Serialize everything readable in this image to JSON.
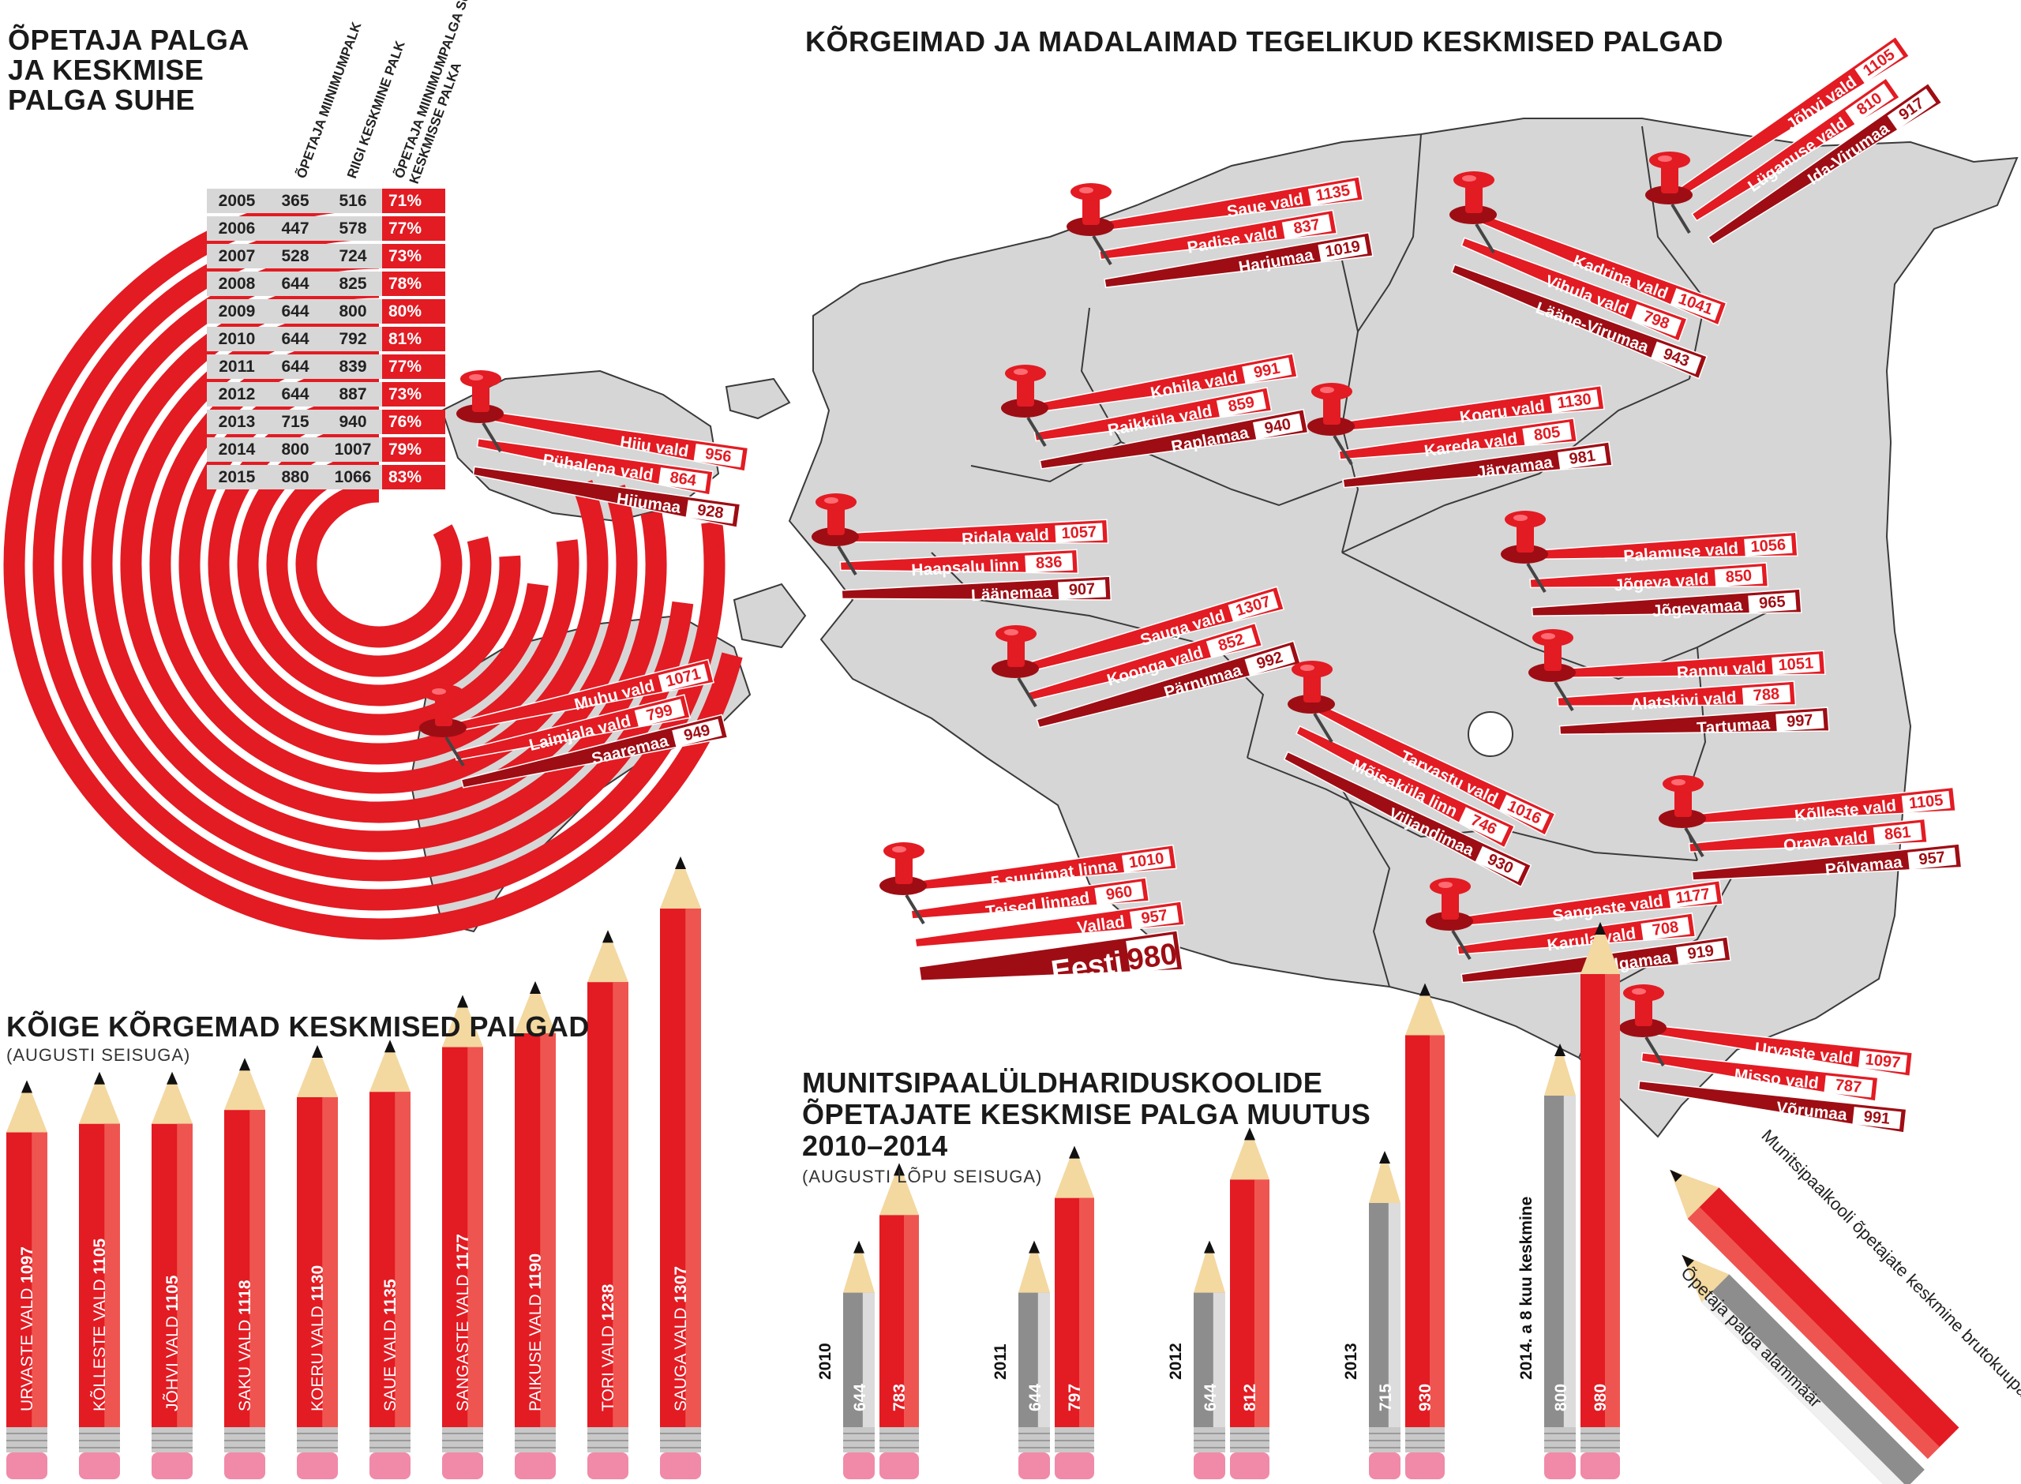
{
  "titles": {
    "ratio": [
      "ÕPETAJA PALGA",
      "JA KESKMISE",
      "PALGA SUHE"
    ],
    "map": "KÕRGEIMAD JA MADALAIMAD TEGELIKUD KESKMISED PALGAD",
    "top10": "KÕIGE KÕRGEMAD KESKMISED PALGAD",
    "top10_sub": "(AUGUSTI SEISUGA)",
    "change": [
      "MUNITSIPAALÜLDHARIDUSKOOLIDE",
      "ÕPETAJATE KESKMISE PALGA MUUTUS",
      "2010–2014"
    ],
    "change_sub": "(AUGUSTI LÕPU SEISUGA)"
  },
  "colors": {
    "red": "#e31b23",
    "dark_red": "#9e0d14",
    "gray": "#d7d7d7",
    "map_gray": "#d6d6d6"
  },
  "chart_data": [
    {
      "type": "table",
      "columns": [
        "ÕPETAJA MIINIMUMPALK",
        "RIIGI KESKMINE PALK",
        "ÕPETAJA MIINIMUMPALGA SUHE RIIGI KESKMISSE PALKA"
      ],
      "rows": [
        {
          "year": "2005",
          "min": "365",
          "avg": "516",
          "pct": "71%",
          "ratio": 0.71
        },
        {
          "year": "2006",
          "min": "447",
          "avg": "578",
          "pct": "77%",
          "ratio": 0.77
        },
        {
          "year": "2007",
          "min": "528",
          "avg": "724",
          "pct": "73%",
          "ratio": 0.73
        },
        {
          "year": "2008",
          "min": "644",
          "avg": "825",
          "pct": "78%",
          "ratio": 0.78
        },
        {
          "year": "2009",
          "min": "644",
          "avg": "800",
          "pct": "80%",
          "ratio": 0.8
        },
        {
          "year": "2010",
          "min": "644",
          "avg": "792",
          "pct": "81%",
          "ratio": 0.81
        },
        {
          "year": "2011",
          "min": "644",
          "avg": "839",
          "pct": "77%",
          "ratio": 0.77
        },
        {
          "year": "2012",
          "min": "644",
          "avg": "887",
          "pct": "73%",
          "ratio": 0.73
        },
        {
          "year": "2013",
          "min": "715",
          "avg": "940",
          "pct": "76%",
          "ratio": 0.76
        },
        {
          "year": "2014",
          "min": "800",
          "avg": "1007",
          "pct": "79%",
          "ratio": 0.79
        },
        {
          "year": "2015",
          "min": "880",
          "avg": "1066",
          "pct": "83%",
          "ratio": 0.83
        }
      ]
    },
    {
      "type": "table",
      "groups": [
        {
          "labels": [
            [
              "Saue vald",
              "1135"
            ],
            [
              "Padise vald",
              "837"
            ],
            [
              "Harjumaa",
              "1019"
            ]
          ]
        },
        {
          "labels": [
            [
              "Jõhvi vald",
              "1105"
            ],
            [
              "Lüganuse vald",
              "810"
            ],
            [
              "Ida-Virumaa",
              "917"
            ]
          ]
        },
        {
          "labels": [
            [
              "Kadrina vald",
              "1041"
            ],
            [
              "Vihula vald",
              "798"
            ],
            [
              "Lääne-Virumaa",
              "943"
            ]
          ]
        },
        {
          "labels": [
            [
              "Hiiu vald",
              "956"
            ],
            [
              "Pühalepa vald",
              "864"
            ],
            [
              "Hiiumaa",
              "928"
            ]
          ]
        },
        {
          "labels": [
            [
              "Kohila vald",
              "991"
            ],
            [
              "Raikküla vald",
              "859"
            ],
            [
              "Raplamaa",
              "940"
            ]
          ]
        },
        {
          "labels": [
            [
              "Koeru vald",
              "1130"
            ],
            [
              "Kareda vald",
              "805"
            ],
            [
              "Järvamaa",
              "981"
            ]
          ]
        },
        {
          "labels": [
            [
              "Ridala vald",
              "1057"
            ],
            [
              "Haapsalu linn",
              "836"
            ],
            [
              "Läänemaa",
              "907"
            ]
          ]
        },
        {
          "labels": [
            [
              "Palamuse vald",
              "1056"
            ],
            [
              "Jõgeva vald",
              "850"
            ],
            [
              "Jõgevamaa",
              "965"
            ]
          ]
        },
        {
          "labels": [
            [
              "Sauga vald",
              "1307"
            ],
            [
              "Koonga vald",
              "852"
            ],
            [
              "Pärnumaa",
              "992"
            ]
          ]
        },
        {
          "labels": [
            [
              "Rannu vald",
              "1051"
            ],
            [
              "Alatskivi vald",
              "788"
            ],
            [
              "Tartumaa",
              "997"
            ]
          ]
        },
        {
          "labels": [
            [
              "Muhu vald",
              "1071"
            ],
            [
              "Laimjala vald",
              "799"
            ],
            [
              "Saaremaa",
              "949"
            ]
          ]
        },
        {
          "labels": [
            [
              "Tarvastu vald",
              "1016"
            ],
            [
              "Mõisaküla linn",
              "746"
            ],
            [
              "Viljandimaa",
              "930"
            ]
          ]
        },
        {
          "labels": [
            [
              "Kõlleste vald",
              "1105"
            ],
            [
              "Orava vald",
              "861"
            ],
            [
              "Põlvamaa",
              "957"
            ]
          ]
        },
        {
          "labels": [
            [
              "5 suurimat linna",
              "1010"
            ],
            [
              "Teised linnad",
              "960"
            ],
            [
              "Vallad",
              "957"
            ],
            [
              "Eesti",
              "980"
            ]
          ]
        },
        {
          "labels": [
            [
              "Sangaste vald",
              "1177"
            ],
            [
              "Karula vald",
              "708"
            ],
            [
              "Valgamaa",
              "919"
            ]
          ]
        },
        {
          "labels": [
            [
              "Urvaste vald",
              "1097"
            ],
            [
              "Misso vald",
              "787"
            ],
            [
              "Võrumaa",
              "991"
            ]
          ]
        }
      ]
    },
    {
      "type": "bar",
      "categories": [
        "URVASTE VALD",
        "KÕLLESTE VALD",
        "JÕHVI VALD",
        "SAKU VALD",
        "KOERU VALD",
        "SAUE VALD",
        "SANGASTE VALD",
        "PAIKUSE VALD",
        "TORI VALD",
        "SAUGA VALD"
      ],
      "values": [
        1097,
        1105,
        1105,
        1118,
        1130,
        1135,
        1177,
        1190,
        1238,
        1307
      ]
    },
    {
      "type": "bar",
      "categories": [
        "2010",
        "2011",
        "2012",
        "2013",
        "2014. a 8 kuu keskmine"
      ],
      "series": [
        {
          "name": "Õpetaja palga alammäär",
          "values": [
            644,
            644,
            644,
            715,
            800
          ]
        },
        {
          "name": "Munitsipaalkooli õpetajate keskmine brutokuupalk",
          "values": [
            783,
            797,
            812,
            930,
            980
          ]
        }
      ]
    }
  ]
}
